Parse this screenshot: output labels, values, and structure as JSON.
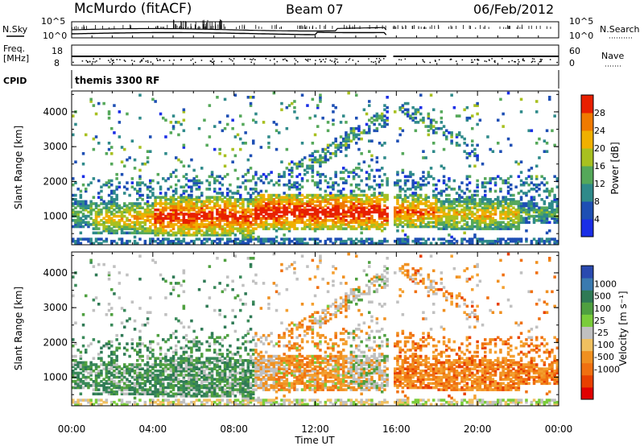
{
  "header": {
    "site": "McMurdo (fitACF)",
    "beam": "Beam 07",
    "date": "06/Feb/2012"
  },
  "summary": {
    "nsky_label": "N.Sky",
    "nsearch_label": "N.Search",
    "nsky_ticks": [
      "10^5",
      "10^0"
    ],
    "nsearch_ticks": [
      "10^5",
      "10^0"
    ],
    "freq_label_line1": "Freq.",
    "freq_label_line2": "[MHz]",
    "freq_ticks": [
      "18",
      "8"
    ],
    "nave_label": "Nave",
    "nave_ticks": [
      "60",
      "0"
    ],
    "cpid_label": "CPID",
    "cpid_value": "themis 3300 RF"
  },
  "chart_data": [
    {
      "type": "heatmap",
      "quantity": "Power",
      "ylabel": "Slant Range [km]",
      "yticks": [
        1000,
        2000,
        3000,
        4000
      ],
      "ylim": [
        180,
        4600
      ],
      "xlim_hours": [
        0,
        24
      ],
      "data_gap_hours": [
        15.5,
        15.85
      ],
      "colorbar": {
        "label": "Power [dB]",
        "ticks": [
          "4",
          "8",
          "12",
          "16",
          "20",
          "24",
          "28"
        ],
        "colors": [
          "#1a2ee6",
          "#1e4fb4",
          "#2f8a8a",
          "#55a85a",
          "#a8c020",
          "#f0b000",
          "#f07a00",
          "#e82000"
        ]
      }
    },
    {
      "type": "heatmap",
      "quantity": "Velocity",
      "ylabel": "Slant Range [km]",
      "yticks": [
        1000,
        2000,
        3000,
        4000
      ],
      "ylim": [
        180,
        4600
      ],
      "xlim_hours": [
        0,
        24
      ],
      "data_gap_hours": [
        15.5,
        15.85
      ],
      "colorbar": {
        "label": "Velocity [m s⁻¹]",
        "ticks": [
          "1000",
          "500",
          "100",
          "25",
          "-25",
          "-100",
          "-500",
          "-1000"
        ],
        "colors": [
          "#2a4ab0",
          "#3a7ab0",
          "#2f7a55",
          "#4fa040",
          "#7acc3a",
          "#c0c0c0",
          "#f0c060",
          "#f09020",
          "#f07010",
          "#e84000",
          "#e00000"
        ]
      }
    }
  ],
  "xaxis": {
    "ticks": [
      "00:00",
      "04:00",
      "08:00",
      "12:00",
      "16:00",
      "20:00",
      "00:00"
    ],
    "label": "Time UT"
  }
}
